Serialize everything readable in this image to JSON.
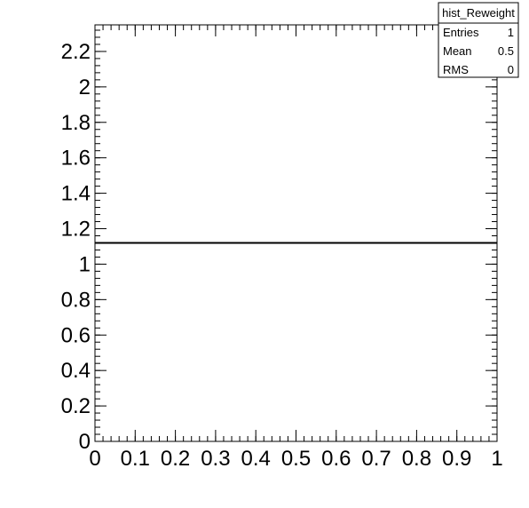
{
  "chart_data": {
    "type": "histogram",
    "title": "",
    "xlabel": "",
    "ylabel": "",
    "xlim": [
      0,
      1
    ],
    "ylim": [
      0,
      2.35
    ],
    "x_ticks": [
      0,
      0.1,
      0.2,
      0.3,
      0.4,
      0.5,
      0.6,
      0.7,
      0.8,
      0.9,
      1
    ],
    "x_tick_labels": [
      "0",
      "0.1",
      "0.2",
      "0.3",
      "0.4",
      "0.5",
      "0.6",
      "0.7",
      "0.8",
      "0.9",
      "1"
    ],
    "y_ticks": [
      0,
      0.2,
      0.4,
      0.6,
      0.8,
      1,
      1.2,
      1.4,
      1.6,
      1.8,
      2,
      2.2
    ],
    "y_tick_labels": [
      "0",
      "0.2",
      "0.4",
      "0.6",
      "0.8",
      "1",
      "1.2",
      "1.4",
      "1.6",
      "1.8",
      "2",
      "2.2"
    ],
    "bins": [
      {
        "x_low": 0,
        "x_high": 1,
        "value": 1.12
      }
    ],
    "grid": false,
    "line_color": "#000000"
  },
  "stats_box": {
    "title": "hist_Reweight",
    "rows": [
      {
        "label": "Entries",
        "value": "1"
      },
      {
        "label": "Mean",
        "value": "0.5"
      },
      {
        "label": "RMS",
        "value": "0"
      }
    ]
  }
}
